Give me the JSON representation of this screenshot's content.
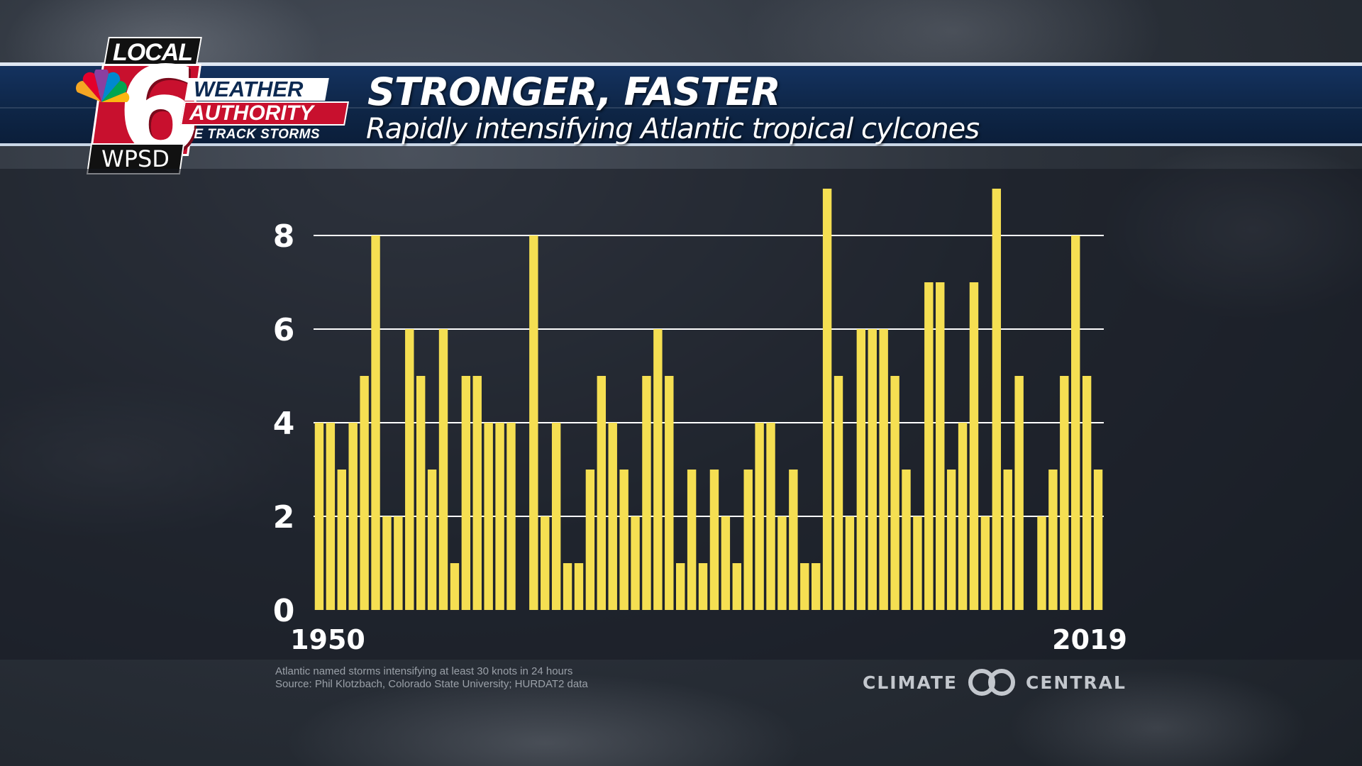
{
  "header": {
    "title": "STRONGER, FASTER",
    "subtitle": "Rapidly intensifying Atlantic tropical cylcones"
  },
  "logo": {
    "local": "LOCAL",
    "number": "6",
    "station": "WPSD",
    "weather": "WEATHER",
    "authority": "AUTHORITY",
    "tagline": "WE TRACK STORMS"
  },
  "footer": {
    "note_line1": "Atlantic named storms intensifying at least 30 knots in 24 hours",
    "note_line2": "Source: Phil Klotzbach, Colorado State University; HURDAT2 data",
    "brand_left": "CLIMATE",
    "brand_right": "CENTRAL"
  },
  "colors": {
    "bar": "#f5df52",
    "grid": "#ffffff",
    "header_band": "#0e2647",
    "logo_red": "#c8102e"
  },
  "chart_data": {
    "type": "bar",
    "title": "",
    "xlabel": "",
    "ylabel": "",
    "ylim": [
      0,
      9
    ],
    "yticks": [
      0,
      2,
      4,
      6,
      8
    ],
    "x_tick_labels": [
      "1950",
      "2019"
    ],
    "grid": true,
    "categories": [
      1950,
      1951,
      1952,
      1953,
      1954,
      1955,
      1956,
      1957,
      1958,
      1959,
      1960,
      1961,
      1962,
      1963,
      1964,
      1965,
      1966,
      1967,
      1968,
      1969,
      1970,
      1971,
      1972,
      1973,
      1974,
      1975,
      1976,
      1977,
      1978,
      1979,
      1980,
      1981,
      1982,
      1983,
      1984,
      1985,
      1986,
      1987,
      1988,
      1989,
      1990,
      1991,
      1992,
      1993,
      1994,
      1995,
      1996,
      1997,
      1998,
      1999,
      2000,
      2001,
      2002,
      2003,
      2004,
      2005,
      2006,
      2007,
      2008,
      2009,
      2010,
      2011,
      2012,
      2013,
      2014,
      2015,
      2016,
      2017,
      2018,
      2019
    ],
    "values": [
      4,
      4,
      3,
      4,
      5,
      8,
      2,
      2,
      6,
      5,
      3,
      6,
      1,
      5,
      5,
      4,
      4,
      4,
      0,
      8,
      2,
      4,
      1,
      1,
      3,
      5,
      4,
      3,
      2,
      5,
      6,
      5,
      1,
      3,
      1,
      3,
      2,
      1,
      3,
      4,
      4,
      2,
      3,
      1,
      1,
      9,
      5,
      2,
      6,
      6,
      6,
      5,
      3,
      2,
      7,
      7,
      3,
      4,
      7,
      2,
      9,
      3,
      5,
      0,
      2,
      3,
      5,
      8,
      5,
      3
    ]
  }
}
